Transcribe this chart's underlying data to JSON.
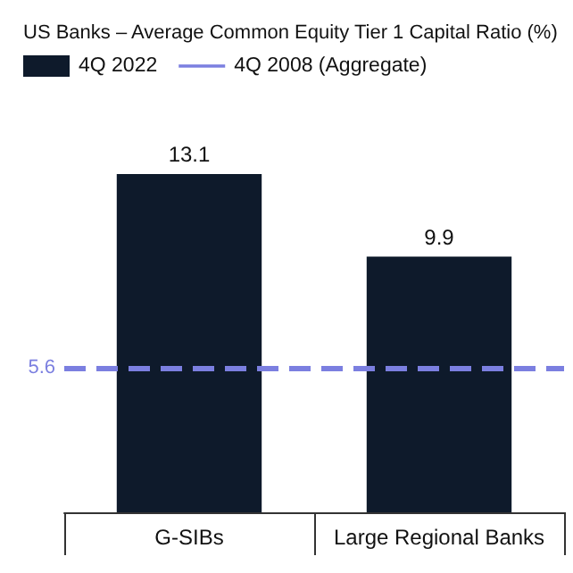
{
  "chart_data": {
    "type": "bar",
    "title": "US Banks – Average Common Equity Tier 1 Capital Ratio (%)",
    "categories": [
      "G-SIBs",
      "Large Regional Banks"
    ],
    "series": [
      {
        "name": "4Q 2022",
        "color": "#0e1a2b",
        "values": [
          13.1,
          9.9
        ]
      }
    ],
    "ref_lines": [
      {
        "axis": "y",
        "value": 5.6,
        "label": "4Q 2008 (Aggregate)",
        "color": "#7b7fe0",
        "line_style": "dashed"
      }
    ],
    "annotations": [
      "5.6"
    ],
    "data_labels": true,
    "legend": "top left",
    "grid": false
  }
}
